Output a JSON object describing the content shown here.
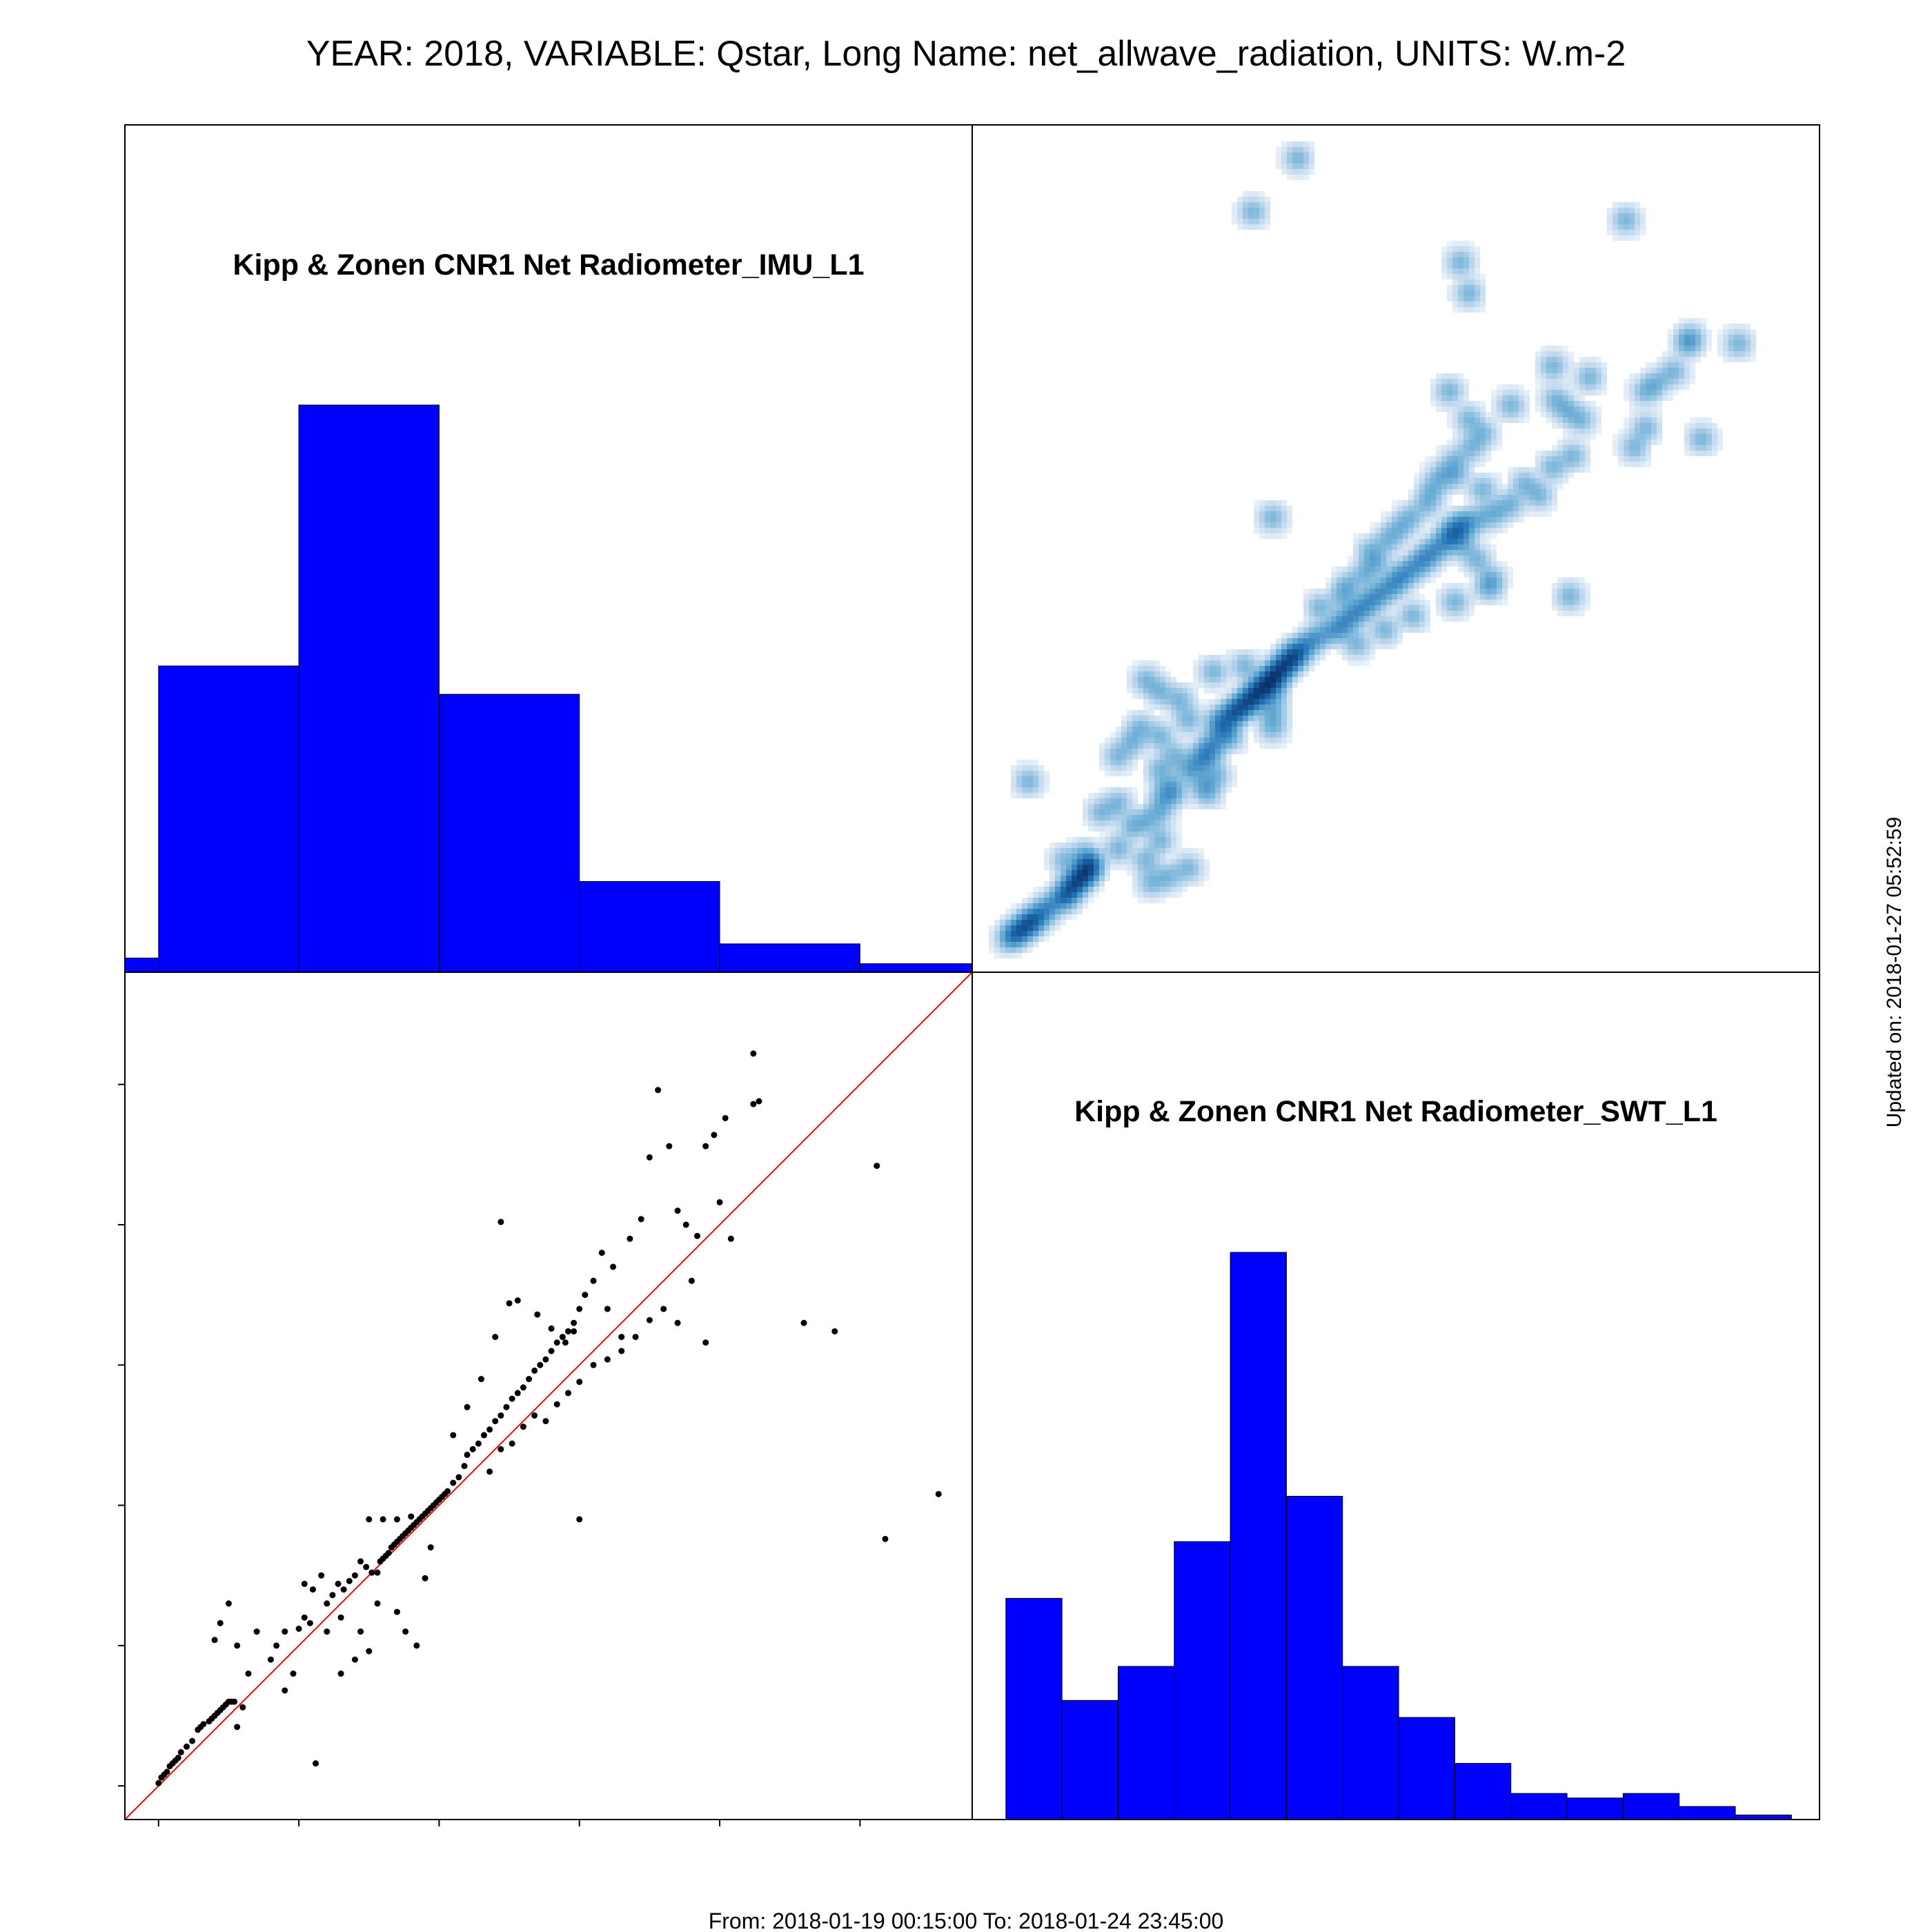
{
  "figure": {
    "title": "YEAR: 2018, VARIABLE: Qstar, Long Name: net_allwave_radiation, UNITS: W.m-2",
    "footer": "From: 2018-01-19 00:15:00 To: 2018-01-24 23:45:00",
    "updated": "Updated on: 2018-01-27 05:52:59"
  },
  "chart_data": [
    {
      "type": "bar",
      "panel": "top-left",
      "title": "Kipp & Zonen CNR1 Net Radiometer_IMU_L1",
      "bin_edges": [
        -112,
        -100,
        -50,
        0,
        50,
        100,
        150,
        190
      ],
      "values": [
        0.025,
        0.54,
        1.0,
        0.49,
        0.16,
        0.05,
        0.015
      ],
      "xlim": [
        -112,
        190
      ],
      "value_scale": "relative",
      "color": "#0000ff"
    },
    {
      "type": "heatmap",
      "panel": "top-right",
      "description_of_encoding": "2D density of SWT_L1 vs IMU_L1",
      "cmap": [
        "#ffffff",
        "#c6dbef",
        "#6baed6",
        "#2171b5",
        "#08306b"
      ],
      "xlim": [
        -112,
        190
      ],
      "ylim": [
        -112,
        190
      ]
    },
    {
      "type": "scatter",
      "panel": "bottom-left",
      "xlim": [
        -112,
        190
      ],
      "ylim": [
        -112,
        190
      ],
      "xticks": [
        "-100",
        "-50",
        "0",
        "50",
        "100",
        "150"
      ],
      "yticks": [
        "-100",
        "-50",
        "0",
        "50",
        "100",
        "150"
      ],
      "reference_line": {
        "slope": 1,
        "intercept": 0,
        "color": "#ff0000"
      },
      "points": [
        [
          -100,
          -99
        ],
        [
          -99,
          -97
        ],
        [
          -98,
          -96
        ],
        [
          -97,
          -95
        ],
        [
          -96,
          -93
        ],
        [
          -95,
          -92
        ],
        [
          -94,
          -91
        ],
        [
          -93,
          -90
        ],
        [
          -92,
          -88
        ],
        [
          -90,
          -86
        ],
        [
          -88,
          -84
        ],
        [
          -86,
          -80
        ],
        [
          -84,
          -78
        ],
        [
          -82,
          -77
        ],
        [
          -80,
          -75
        ],
        [
          -78,
          -73
        ],
        [
          -76,
          -71
        ],
        [
          -74,
          -70
        ],
        [
          -85,
          -79
        ],
        [
          -81,
          -76
        ],
        [
          -79,
          -74
        ],
        [
          -77,
          -72
        ],
        [
          -75,
          -70
        ],
        [
          -73,
          -70
        ],
        [
          -72,
          -79
        ],
        [
          -70,
          -72
        ],
        [
          -68,
          -60
        ],
        [
          -75,
          -35
        ],
        [
          -78,
          -42
        ],
        [
          -80,
          -48
        ],
        [
          -72,
          -50
        ],
        [
          -65,
          -45
        ],
        [
          -60,
          -55
        ],
        [
          -58,
          -50
        ],
        [
          -55,
          -45
        ],
        [
          -55,
          -66
        ],
        [
          -52,
          -60
        ],
        [
          -50,
          -44
        ],
        [
          -48,
          -40
        ],
        [
          -46,
          -42
        ],
        [
          -45,
          -30
        ],
        [
          -44,
          -92
        ],
        [
          -42,
          -25
        ],
        [
          -40,
          -35
        ],
        [
          -38,
          -32
        ],
        [
          -36,
          -28
        ],
        [
          -35,
          -40
        ],
        [
          -34,
          -30
        ],
        [
          -32,
          -27
        ],
        [
          -30,
          -25
        ],
        [
          -30,
          -55
        ],
        [
          -28,
          -20
        ],
        [
          -26,
          -22
        ],
        [
          -25,
          -52
        ],
        [
          -24,
          -24
        ],
        [
          -22,
          -24
        ],
        [
          -21,
          -20
        ],
        [
          -20,
          -19
        ],
        [
          -19,
          -18
        ],
        [
          -18,
          -17
        ],
        [
          -17,
          -15
        ],
        [
          -16,
          -14
        ],
        [
          -15,
          -13
        ],
        [
          -14,
          -12
        ],
        [
          -13,
          -11
        ],
        [
          -12,
          -10
        ],
        [
          -11,
          -9
        ],
        [
          -10,
          -8
        ],
        [
          -9,
          -7
        ],
        [
          -8,
          -6
        ],
        [
          -7,
          -5
        ],
        [
          -6,
          -4
        ],
        [
          -5,
          -3
        ],
        [
          -4,
          -2
        ],
        [
          -3,
          -1
        ],
        [
          -2,
          0
        ],
        [
          -1,
          1
        ],
        [
          0,
          2
        ],
        [
          1,
          3
        ],
        [
          2,
          4
        ],
        [
          -25,
          -5
        ],
        [
          -20,
          -5
        ],
        [
          -15,
          -5
        ],
        [
          -10,
          -4
        ],
        [
          -28,
          -45
        ],
        [
          -22,
          -35
        ],
        [
          -15,
          -38
        ],
        [
          -12,
          -45
        ],
        [
          -8,
          -50
        ],
        [
          -5,
          -26
        ],
        [
          -3,
          -15
        ],
        [
          -35,
          -60
        ],
        [
          -40,
          -45
        ],
        [
          -48,
          -28
        ],
        [
          3,
          5
        ],
        [
          5,
          8
        ],
        [
          7,
          10
        ],
        [
          9,
          14
        ],
        [
          10,
          18
        ],
        [
          12,
          20
        ],
        [
          14,
          22
        ],
        [
          16,
          25
        ],
        [
          18,
          27
        ],
        [
          20,
          30
        ],
        [
          22,
          32
        ],
        [
          24,
          35
        ],
        [
          26,
          38
        ],
        [
          28,
          40
        ],
        [
          30,
          42
        ],
        [
          32,
          45
        ],
        [
          34,
          48
        ],
        [
          36,
          50
        ],
        [
          38,
          52
        ],
        [
          40,
          55
        ],
        [
          42,
          58
        ],
        [
          44,
          60
        ],
        [
          46,
          62
        ],
        [
          48,
          65
        ],
        [
          50,
          70
        ],
        [
          52,
          75
        ],
        [
          18,
          12
        ],
        [
          22,
          20
        ],
        [
          26,
          22
        ],
        [
          30,
          28
        ],
        [
          34,
          32
        ],
        [
          38,
          30
        ],
        [
          42,
          36
        ],
        [
          46,
          40
        ],
        [
          50,
          44
        ],
        [
          55,
          50
        ],
        [
          60,
          52
        ],
        [
          65,
          55
        ],
        [
          70,
          60
        ],
        [
          75,
          66
        ],
        [
          80,
          70
        ],
        [
          85,
          65
        ],
        [
          90,
          80
        ],
        [
          60,
          70
        ],
        [
          65,
          60
        ],
        [
          22,
          101
        ],
        [
          50,
          -5
        ],
        [
          75,
          124
        ],
        [
          78,
          148
        ],
        [
          82,
          128
        ],
        [
          85,
          105
        ],
        [
          88,
          100
        ],
        [
          92,
          96
        ],
        [
          95,
          58
        ],
        [
          95,
          128
        ],
        [
          98,
          132
        ],
        [
          100,
          108
        ],
        [
          102,
          138
        ],
        [
          104,
          95
        ],
        [
          112,
          143
        ],
        [
          112,
          161
        ],
        [
          114,
          144
        ],
        [
          130,
          65
        ],
        [
          141,
          62
        ],
        [
          156,
          121
        ],
        [
          159,
          -12
        ],
        [
          178,
          4
        ],
        [
          55,
          80
        ],
        [
          58,
          90
        ],
        [
          62,
          85
        ],
        [
          68,
          95
        ],
        [
          72,
          102
        ],
        [
          25,
          72
        ],
        [
          20,
          60
        ],
        [
          15,
          45
        ],
        [
          10,
          35
        ],
        [
          5,
          25
        ],
        [
          28,
          73
        ],
        [
          35,
          68
        ],
        [
          40,
          63
        ],
        [
          45,
          58
        ],
        [
          48,
          62
        ]
      ]
    },
    {
      "type": "bar",
      "panel": "bottom-right",
      "title": "Kipp & Zonen CNR1 Net Radiometer_SWT_L1",
      "bin_edges": [
        -100,
        -80,
        -60,
        -40,
        -20,
        0,
        20,
        40,
        60,
        80,
        100,
        120,
        140,
        160,
        180
      ],
      "values": [
        0.39,
        0.21,
        0.27,
        0.49,
        1.0,
        0.57,
        0.27,
        0.18,
        0.099,
        0.046,
        0.038,
        0.046,
        0.023,
        0.008
      ],
      "xlim": [
        -112,
        190
      ],
      "value_scale": "relative",
      "color": "#0000ff"
    }
  ]
}
